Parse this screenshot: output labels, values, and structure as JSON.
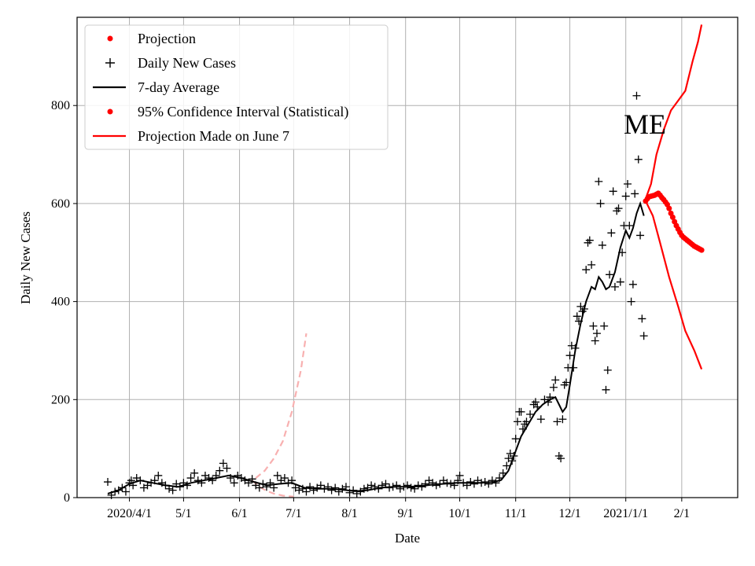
{
  "chart_data": {
    "type": "line",
    "xlabel": "Date",
    "ylabel": "Daily New Cases",
    "ylim": [
      0,
      980
    ],
    "xlim": [
      "2020-03-03",
      "2021-03-04"
    ],
    "grid": true,
    "legend_position": "top-left",
    "annotation": "ME",
    "y_ticks": [
      0,
      200,
      400,
      600,
      800
    ],
    "x_ticks": [
      {
        "date": "2020-04-01",
        "label": "2020/4/1"
      },
      {
        "date": "2020-05-01",
        "label": "5/1"
      },
      {
        "date": "2020-06-01",
        "label": "6/1"
      },
      {
        "date": "2020-07-01",
        "label": "7/1"
      },
      {
        "date": "2020-08-01",
        "label": "8/1"
      },
      {
        "date": "2020-09-01",
        "label": "9/1"
      },
      {
        "date": "2020-10-01",
        "label": "10/1"
      },
      {
        "date": "2020-11-01",
        "label": "11/1"
      },
      {
        "date": "2020-12-01",
        "label": "12/1"
      },
      {
        "date": "2021-01-01",
        "label": "2021/1/1"
      },
      {
        "date": "2021-02-01",
        "label": "2/1"
      }
    ],
    "legend": [
      {
        "name": "Projection",
        "marker": "dot",
        "color": "#ff0000"
      },
      {
        "name": "Daily New Cases",
        "marker": "plus",
        "color": "#000000"
      },
      {
        "name": "7-day Average",
        "marker": "line",
        "color": "#000000"
      },
      {
        "name": "95% Confidence Interval (Statistical)",
        "marker": "dot",
        "color": "#ff0000"
      },
      {
        "name": "Projection Made on June 7",
        "marker": "line",
        "color": "#ff0000"
      }
    ],
    "daily_new_cases": [
      [
        "2020-03-20",
        32
      ],
      [
        "2020-03-22",
        5
      ],
      [
        "2020-03-24",
        12
      ],
      [
        "2020-03-26",
        15
      ],
      [
        "2020-03-28",
        20
      ],
      [
        "2020-03-30",
        12
      ],
      [
        "2020-04-01",
        30
      ],
      [
        "2020-04-02",
        35
      ],
      [
        "2020-04-03",
        25
      ],
      [
        "2020-04-05",
        40
      ],
      [
        "2020-04-07",
        35
      ],
      [
        "2020-04-09",
        20
      ],
      [
        "2020-04-11",
        25
      ],
      [
        "2020-04-13",
        30
      ],
      [
        "2020-04-15",
        35
      ],
      [
        "2020-04-17",
        45
      ],
      [
        "2020-04-19",
        30
      ],
      [
        "2020-04-21",
        25
      ],
      [
        "2020-04-23",
        18
      ],
      [
        "2020-04-25",
        15
      ],
      [
        "2020-04-27",
        28
      ],
      [
        "2020-04-29",
        22
      ],
      [
        "2020-05-01",
        30
      ],
      [
        "2020-05-03",
        25
      ],
      [
        "2020-05-05",
        40
      ],
      [
        "2020-05-07",
        50
      ],
      [
        "2020-05-09",
        35
      ],
      [
        "2020-05-11",
        30
      ],
      [
        "2020-05-13",
        45
      ],
      [
        "2020-05-15",
        40
      ],
      [
        "2020-05-17",
        35
      ],
      [
        "2020-05-19",
        45
      ],
      [
        "2020-05-21",
        55
      ],
      [
        "2020-05-23",
        70
      ],
      [
        "2020-05-25",
        60
      ],
      [
        "2020-05-27",
        40
      ],
      [
        "2020-05-29",
        30
      ],
      [
        "2020-05-31",
        45
      ],
      [
        "2020-06-02",
        40
      ],
      [
        "2020-06-04",
        35
      ],
      [
        "2020-06-06",
        30
      ],
      [
        "2020-06-08",
        38
      ],
      [
        "2020-06-10",
        25
      ],
      [
        "2020-06-12",
        20
      ],
      [
        "2020-06-14",
        28
      ],
      [
        "2020-06-16",
        22
      ],
      [
        "2020-06-18",
        30
      ],
      [
        "2020-06-20",
        20
      ],
      [
        "2020-06-22",
        45
      ],
      [
        "2020-06-24",
        35
      ],
      [
        "2020-06-26",
        40
      ],
      [
        "2020-06-28",
        30
      ],
      [
        "2020-06-30",
        35
      ],
      [
        "2020-07-02",
        20
      ],
      [
        "2020-07-04",
        15
      ],
      [
        "2020-07-06",
        18
      ],
      [
        "2020-07-08",
        12
      ],
      [
        "2020-07-10",
        22
      ],
      [
        "2020-07-12",
        15
      ],
      [
        "2020-07-14",
        20
      ],
      [
        "2020-07-16",
        25
      ],
      [
        "2020-07-18",
        18
      ],
      [
        "2020-07-20",
        22
      ],
      [
        "2020-07-22",
        15
      ],
      [
        "2020-07-24",
        20
      ],
      [
        "2020-07-26",
        12
      ],
      [
        "2020-07-28",
        18
      ],
      [
        "2020-07-30",
        22
      ],
      [
        "2020-08-01",
        10
      ],
      [
        "2020-08-03",
        15
      ],
      [
        "2020-08-05",
        8
      ],
      [
        "2020-08-07",
        12
      ],
      [
        "2020-08-09",
        18
      ],
      [
        "2020-08-11",
        20
      ],
      [
        "2020-08-13",
        25
      ],
      [
        "2020-08-15",
        22
      ],
      [
        "2020-08-17",
        18
      ],
      [
        "2020-08-19",
        25
      ],
      [
        "2020-08-21",
        28
      ],
      [
        "2020-08-23",
        20
      ],
      [
        "2020-08-25",
        22
      ],
      [
        "2020-08-27",
        25
      ],
      [
        "2020-08-29",
        18
      ],
      [
        "2020-08-31",
        22
      ],
      [
        "2020-09-02",
        25
      ],
      [
        "2020-09-04",
        20
      ],
      [
        "2020-09-06",
        18
      ],
      [
        "2020-09-08",
        25
      ],
      [
        "2020-09-10",
        22
      ],
      [
        "2020-09-12",
        28
      ],
      [
        "2020-09-14",
        35
      ],
      [
        "2020-09-16",
        30
      ],
      [
        "2020-09-18",
        25
      ],
      [
        "2020-09-20",
        28
      ],
      [
        "2020-09-22",
        35
      ],
      [
        "2020-09-24",
        30
      ],
      [
        "2020-09-26",
        28
      ],
      [
        "2020-09-28",
        25
      ],
      [
        "2020-09-30",
        35
      ],
      [
        "2020-10-01",
        45
      ],
      [
        "2020-10-03",
        30
      ],
      [
        "2020-10-05",
        25
      ],
      [
        "2020-10-07",
        32
      ],
      [
        "2020-10-09",
        28
      ],
      [
        "2020-10-11",
        35
      ],
      [
        "2020-10-13",
        30
      ],
      [
        "2020-10-15",
        32
      ],
      [
        "2020-10-17",
        28
      ],
      [
        "2020-10-19",
        35
      ],
      [
        "2020-10-21",
        30
      ],
      [
        "2020-10-23",
        40
      ],
      [
        "2020-10-25",
        50
      ],
      [
        "2020-10-27",
        65
      ],
      [
        "2020-10-28",
        80
      ],
      [
        "2020-10-29",
        90
      ],
      [
        "2020-10-30",
        75
      ],
      [
        "2020-10-31",
        85
      ],
      [
        "2020-11-01",
        120
      ],
      [
        "2020-11-02",
        155
      ],
      [
        "2020-11-03",
        175
      ],
      [
        "2020-11-04",
        175
      ],
      [
        "2020-11-05",
        140
      ],
      [
        "2020-11-06",
        150
      ],
      [
        "2020-11-07",
        155
      ],
      [
        "2020-11-09",
        170
      ],
      [
        "2020-11-11",
        190
      ],
      [
        "2020-11-12",
        195
      ],
      [
        "2020-11-13",
        185
      ],
      [
        "2020-11-15",
        160
      ],
      [
        "2020-11-17",
        200
      ],
      [
        "2020-11-19",
        195
      ],
      [
        "2020-11-20",
        205
      ],
      [
        "2020-11-22",
        225
      ],
      [
        "2020-11-23",
        240
      ],
      [
        "2020-11-24",
        155
      ],
      [
        "2020-11-25",
        85
      ],
      [
        "2020-11-26",
        80
      ],
      [
        "2020-11-27",
        160
      ],
      [
        "2020-11-28",
        230
      ],
      [
        "2020-11-29",
        235
      ],
      [
        "2020-11-30",
        265
      ],
      [
        "2020-12-01",
        290
      ],
      [
        "2020-12-02",
        310
      ],
      [
        "2020-12-03",
        265
      ],
      [
        "2020-12-04",
        305
      ],
      [
        "2020-12-05",
        370
      ],
      [
        "2020-12-06",
        360
      ],
      [
        "2020-12-07",
        390
      ],
      [
        "2020-12-08",
        380
      ],
      [
        "2020-12-09",
        385
      ],
      [
        "2020-12-10",
        465
      ],
      [
        "2020-12-11",
        520
      ],
      [
        "2020-12-12",
        525
      ],
      [
        "2020-12-13",
        475
      ],
      [
        "2020-12-14",
        350
      ],
      [
        "2020-12-15",
        320
      ],
      [
        "2020-12-16",
        335
      ],
      [
        "2020-12-17",
        645
      ],
      [
        "2020-12-18",
        600
      ],
      [
        "2020-12-19",
        515
      ],
      [
        "2020-12-20",
        350
      ],
      [
        "2020-12-21",
        220
      ],
      [
        "2020-12-22",
        260
      ],
      [
        "2020-12-23",
        455
      ],
      [
        "2020-12-24",
        540
      ],
      [
        "2020-12-25",
        625
      ],
      [
        "2020-12-26",
        430
      ],
      [
        "2020-12-27",
        585
      ],
      [
        "2020-12-28",
        590
      ],
      [
        "2020-12-29",
        440
      ],
      [
        "2020-12-30",
        500
      ],
      [
        "2020-12-31",
        555
      ],
      [
        "2021-01-01",
        615
      ],
      [
        "2021-01-02",
        640
      ],
      [
        "2021-01-03",
        555
      ],
      [
        "2021-01-04",
        400
      ],
      [
        "2021-01-05",
        435
      ],
      [
        "2021-01-06",
        620
      ],
      [
        "2021-01-07",
        820
      ],
      [
        "2021-01-08",
        690
      ],
      [
        "2021-01-09",
        535
      ],
      [
        "2021-01-10",
        365
      ],
      [
        "2021-01-11",
        330
      ]
    ],
    "seven_day_average": [
      [
        "2020-03-20",
        8
      ],
      [
        "2020-03-26",
        15
      ],
      [
        "2020-04-01",
        28
      ],
      [
        "2020-04-07",
        35
      ],
      [
        "2020-04-14",
        30
      ],
      [
        "2020-04-21",
        25
      ],
      [
        "2020-04-28",
        22
      ],
      [
        "2020-05-05",
        30
      ],
      [
        "2020-05-12",
        35
      ],
      [
        "2020-05-19",
        40
      ],
      [
        "2020-05-26",
        45
      ],
      [
        "2020-06-02",
        40
      ],
      [
        "2020-06-09",
        32
      ],
      [
        "2020-06-16",
        25
      ],
      [
        "2020-06-23",
        28
      ],
      [
        "2020-06-30",
        30
      ],
      [
        "2020-07-07",
        20
      ],
      [
        "2020-07-14",
        18
      ],
      [
        "2020-07-21",
        18
      ],
      [
        "2020-07-28",
        16
      ],
      [
        "2020-08-04",
        13
      ],
      [
        "2020-08-11",
        15
      ],
      [
        "2020-08-18",
        20
      ],
      [
        "2020-08-25",
        22
      ],
      [
        "2020-09-01",
        22
      ],
      [
        "2020-09-08",
        23
      ],
      [
        "2020-09-15",
        26
      ],
      [
        "2020-09-22",
        28
      ],
      [
        "2020-09-29",
        30
      ],
      [
        "2020-10-06",
        30
      ],
      [
        "2020-10-13",
        30
      ],
      [
        "2020-10-20",
        32
      ],
      [
        "2020-10-24",
        36
      ],
      [
        "2020-10-28",
        55
      ],
      [
        "2020-11-01",
        95
      ],
      [
        "2020-11-04",
        125
      ],
      [
        "2020-11-08",
        150
      ],
      [
        "2020-11-12",
        175
      ],
      [
        "2020-11-16",
        190
      ],
      [
        "2020-11-20",
        200
      ],
      [
        "2020-11-23",
        205
      ],
      [
        "2020-11-25",
        190
      ],
      [
        "2020-11-27",
        175
      ],
      [
        "2020-11-29",
        185
      ],
      [
        "2020-12-01",
        230
      ],
      [
        "2020-12-04",
        300
      ],
      [
        "2020-12-07",
        355
      ],
      [
        "2020-12-10",
        400
      ],
      [
        "2020-12-13",
        430
      ],
      [
        "2020-12-15",
        425
      ],
      [
        "2020-12-17",
        450
      ],
      [
        "2020-12-19",
        440
      ],
      [
        "2020-12-21",
        425
      ],
      [
        "2020-12-23",
        430
      ],
      [
        "2020-12-26",
        460
      ],
      [
        "2020-12-29",
        510
      ],
      [
        "2021-01-01",
        545
      ],
      [
        "2021-01-03",
        530
      ],
      [
        "2021-01-05",
        550
      ],
      [
        "2021-01-07",
        580
      ],
      [
        "2021-01-09",
        600
      ],
      [
        "2021-01-11",
        575
      ]
    ],
    "projection": [
      [
        "2021-01-12",
        605
      ],
      [
        "2021-01-13",
        610
      ],
      [
        "2021-01-14",
        614
      ],
      [
        "2021-01-15",
        615
      ],
      [
        "2021-01-16",
        616
      ],
      [
        "2021-01-17",
        617
      ],
      [
        "2021-01-18",
        619
      ],
      [
        "2021-01-19",
        621
      ],
      [
        "2021-01-20",
        617
      ],
      [
        "2021-01-21",
        612
      ],
      [
        "2021-01-22",
        608
      ],
      [
        "2021-01-23",
        603
      ],
      [
        "2021-01-24",
        598
      ],
      [
        "2021-01-25",
        590
      ],
      [
        "2021-01-26",
        580
      ],
      [
        "2021-01-27",
        572
      ],
      [
        "2021-01-28",
        563
      ],
      [
        "2021-01-29",
        555
      ],
      [
        "2021-01-30",
        548
      ],
      [
        "2021-01-31",
        541
      ],
      [
        "2021-02-01",
        535
      ],
      [
        "2021-02-02",
        531
      ],
      [
        "2021-02-03",
        528
      ],
      [
        "2021-02-04",
        525
      ],
      [
        "2021-02-05",
        522
      ],
      [
        "2021-02-06",
        519
      ],
      [
        "2021-02-07",
        516
      ],
      [
        "2021-02-08",
        513
      ],
      [
        "2021-02-09",
        511
      ],
      [
        "2021-02-10",
        509
      ],
      [
        "2021-02-11",
        507
      ],
      [
        "2021-02-12",
        505
      ]
    ],
    "confidence_upper": [
      [
        "2021-01-12",
        610
      ],
      [
        "2021-01-15",
        640
      ],
      [
        "2021-01-18",
        700
      ],
      [
        "2021-01-22",
        750
      ],
      [
        "2021-01-26",
        790
      ],
      [
        "2021-01-30",
        810
      ],
      [
        "2021-02-03",
        830
      ],
      [
        "2021-02-07",
        890
      ],
      [
        "2021-02-10",
        930
      ],
      [
        "2021-02-12",
        965
      ]
    ],
    "confidence_lower": [
      [
        "2021-01-12",
        605
      ],
      [
        "2021-01-16",
        575
      ],
      [
        "2021-01-20",
        520
      ],
      [
        "2021-01-25",
        450
      ],
      [
        "2021-01-30",
        390
      ],
      [
        "2021-02-03",
        340
      ],
      [
        "2021-02-08",
        300
      ],
      [
        "2021-02-12",
        262
      ]
    ],
    "june7_projection": [
      [
        "2020-06-10",
        40
      ],
      [
        "2020-06-15",
        55
      ],
      [
        "2020-06-20",
        80
      ],
      [
        "2020-06-25",
        115
      ],
      [
        "2020-06-30",
        175
      ],
      [
        "2020-07-05",
        260
      ],
      [
        "2020-07-08",
        335
      ]
    ],
    "june7_projection_lower": [
      [
        "2020-06-08",
        35
      ],
      [
        "2020-06-12",
        22
      ],
      [
        "2020-06-16",
        14
      ],
      [
        "2020-06-20",
        8
      ],
      [
        "2020-06-25",
        4
      ],
      [
        "2020-07-01",
        2
      ]
    ]
  }
}
